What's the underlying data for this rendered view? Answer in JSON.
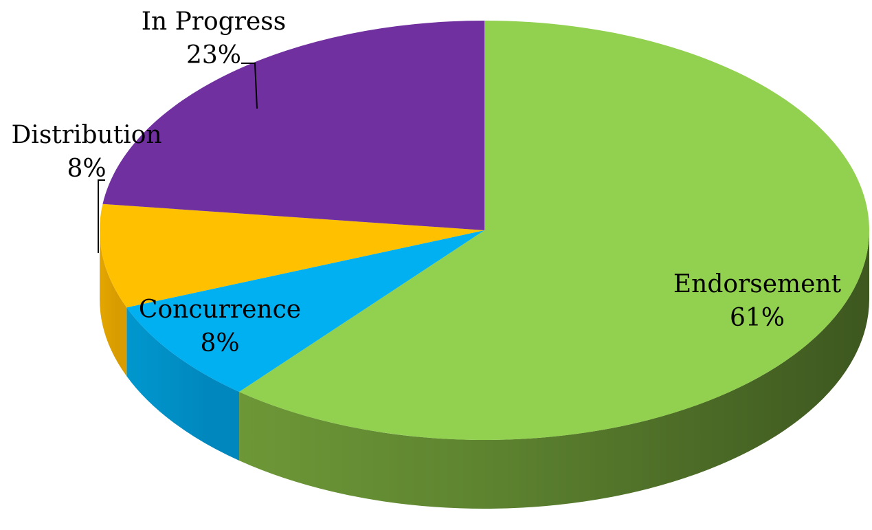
{
  "chart_data": {
    "type": "pie",
    "title": "",
    "slices": [
      {
        "name": "Endorsement",
        "value": 61,
        "value_label": "61%",
        "color": "#92D050"
      },
      {
        "name": "Concurrence",
        "value": 8,
        "value_label": "8%",
        "color": "#00B0F0"
      },
      {
        "name": "Distribution",
        "value": 8,
        "value_label": "8%",
        "color": "#FFC000"
      },
      {
        "name": "In Progress",
        "value": 23,
        "value_label": "23%",
        "color": "#7030A0"
      }
    ],
    "style": "3d"
  }
}
